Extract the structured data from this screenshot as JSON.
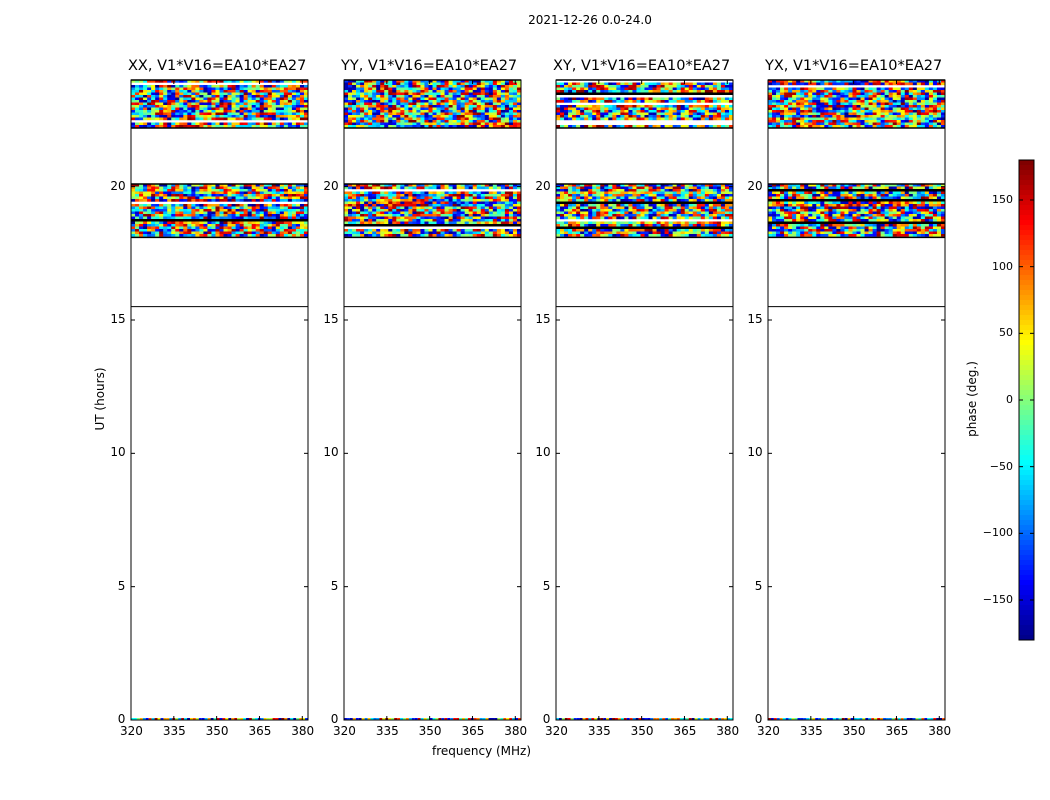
{
  "figure": {
    "suptitle": "2021-12-26 0.0-24.0"
  },
  "chart_data": {
    "type": "heatmap",
    "title": "2021-12-26 0.0-24.0",
    "xlabel": "frequency (MHz)",
    "ylabel": "UT (hours)",
    "xlim": [
      320,
      382
    ],
    "ylim": [
      0,
      24
    ],
    "xticks": [
      320,
      335,
      350,
      365,
      380
    ],
    "yticks": [
      0,
      5,
      10,
      15,
      20
    ],
    "colorbar": {
      "label": "phase (deg.)",
      "range": [
        -180,
        180
      ],
      "ticks": [
        150,
        100,
        50,
        0,
        -50,
        -100,
        -150
      ],
      "tick_labels": [
        "150",
        "100",
        "50",
        "0",
        "−50",
        "−100",
        "−150"
      ],
      "colormap": "jet",
      "colors": [
        "#00008f",
        "#0000ff",
        "#0080ff",
        "#00ffff",
        "#80ff80",
        "#ffff00",
        "#ff8000",
        "#ff0000",
        "#800000"
      ]
    },
    "panels": [
      {
        "title": "XX, V1*V16=EA10*EA27",
        "pol": "XX"
      },
      {
        "title": "YY, V1*V16=EA10*EA27",
        "pol": "YY"
      },
      {
        "title": "XY, V1*V16=EA10*EA27",
        "pol": "XY"
      },
      {
        "title": "YX, V1*V16=EA10*EA27",
        "pol": "YX"
      }
    ],
    "data_blocks_ut": [
      [
        22.2,
        24.0
      ],
      [
        18.1,
        20.1
      ]
    ],
    "data_gap_ut": [
      [
        20.1,
        22.2
      ],
      [
        15.5,
        18.1
      ]
    ],
    "baseline_line_ut": 15.5
  }
}
